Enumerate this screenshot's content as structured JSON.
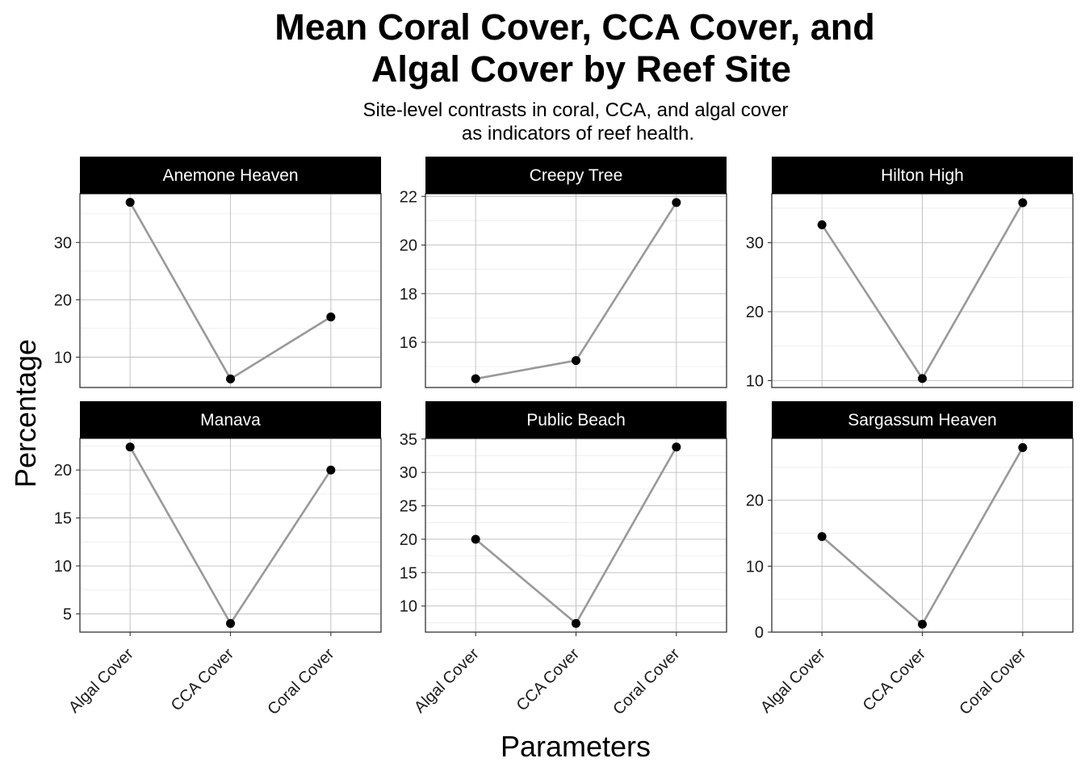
{
  "chart_data": {
    "type": "line",
    "title_lines": [
      "Mean Coral Cover, CCA Cover, and",
      "Algal Cover by Reef Site"
    ],
    "subtitle_lines": [
      "Site-level contrasts in coral, CCA, and algal cover",
      "as indicators of reef health."
    ],
    "xlabel": "Parameters",
    "ylabel": "Percentage",
    "categories": [
      "Algal Cover",
      "CCA Cover",
      "Coral Cover"
    ],
    "colors": {
      "line": "#999999",
      "point": "#000000",
      "strip": "#000000"
    },
    "facets": [
      {
        "name": "Anemone Heaven",
        "values": [
          37.0,
          6.2,
          17.0
        ],
        "ylim": [
          4.7,
          38.5
        ],
        "yticks": [
          10,
          20,
          30
        ]
      },
      {
        "name": "Creepy Tree",
        "values": [
          14.5,
          15.25,
          21.75
        ],
        "ylim": [
          14.14,
          22.11
        ],
        "yticks": [
          16,
          18,
          20,
          22
        ]
      },
      {
        "name": "Hilton High",
        "values": [
          32.6,
          10.3,
          35.8
        ],
        "ylim": [
          9.0,
          37.1
        ],
        "yticks": [
          10,
          20,
          30
        ]
      },
      {
        "name": "Manava",
        "values": [
          22.4,
          4.0,
          20.0
        ],
        "ylim": [
          3.1,
          23.3
        ],
        "yticks": [
          5,
          10,
          15,
          20
        ]
      },
      {
        "name": "Public Beach",
        "values": [
          20.0,
          7.4,
          33.8
        ],
        "ylim": [
          6.1,
          35.1
        ],
        "yticks": [
          10,
          15,
          20,
          25,
          30,
          35
        ]
      },
      {
        "name": "Sargassum Heaven",
        "values": [
          14.5,
          1.2,
          28.0
        ],
        "ylim": [
          0,
          29.4
        ],
        "yticks": [
          0,
          10,
          20
        ]
      }
    ]
  }
}
